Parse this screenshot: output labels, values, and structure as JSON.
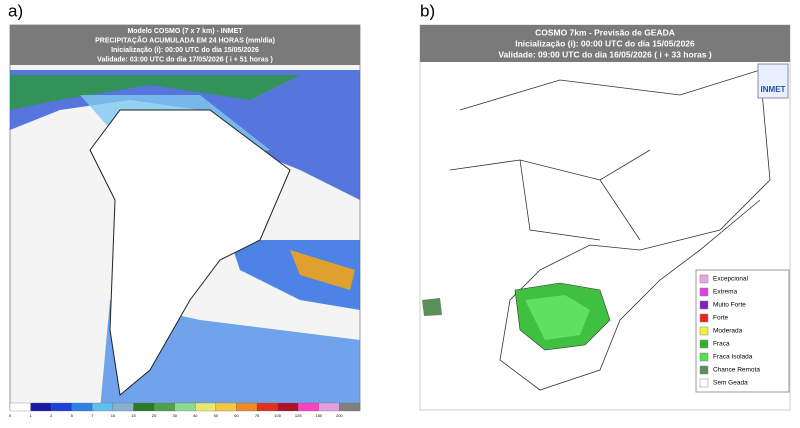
{
  "panel_a": {
    "label": "a)",
    "header": [
      "Modelo COSMO (7 x 7 km) - INMET",
      "PRECIPITAÇÃO ACUMULADA EM 24 HORAS (mm/dia)",
      "Inicialização (i): 00:00 UTC do dia 15/05/2026",
      "Validade: 03:00 UTC do dia 17/05/2026 ( i + 51 horas )"
    ],
    "colorbar": {
      "labels": [
        "0",
        "1",
        "2",
        "5",
        "7",
        "10",
        "15",
        "20",
        "30",
        "40",
        "50",
        "60",
        "75",
        "100",
        "125",
        "150",
        "200"
      ],
      "colors": [
        "#ffffff",
        "#1a1aa6",
        "#1f3fd6",
        "#2f7fe8",
        "#5fbff0",
        "#8ab0cf",
        "#2a7a2a",
        "#4da04d",
        "#8fd88f",
        "#e8e870",
        "#f5c842",
        "#f08a24",
        "#e0301e",
        "#b0102a",
        "#ff40c0",
        "#e0a0e0",
        "#808080"
      ]
    }
  },
  "panel_b": {
    "label": "b)",
    "header": [
      "COSMO 7km - Previsão de GEADA",
      "Inicialização (i): 00:00 UTC do dia 15/05/2026",
      "Validade: 09:00 UTC do dia 16/05/2026 ( i + 33 horas )"
    ],
    "logo": "INMET",
    "legend": [
      {
        "label": "Excepcional",
        "color": "#f0a0e8"
      },
      {
        "label": "Extrema",
        "color": "#e040e0"
      },
      {
        "label": "Muito Forte",
        "color": "#8020c0"
      },
      {
        "label": "Forte",
        "color": "#f02020"
      },
      {
        "label": "Moderada",
        "color": "#f0f040"
      },
      {
        "label": "Fraca",
        "color": "#30b030"
      },
      {
        "label": "Fraca Isolada",
        "color": "#50e050"
      },
      {
        "label": "Chance Remota",
        "color": "#5a8f5a"
      },
      {
        "label": "Sem Geada",
        "color": "#ffffff"
      }
    ]
  }
}
